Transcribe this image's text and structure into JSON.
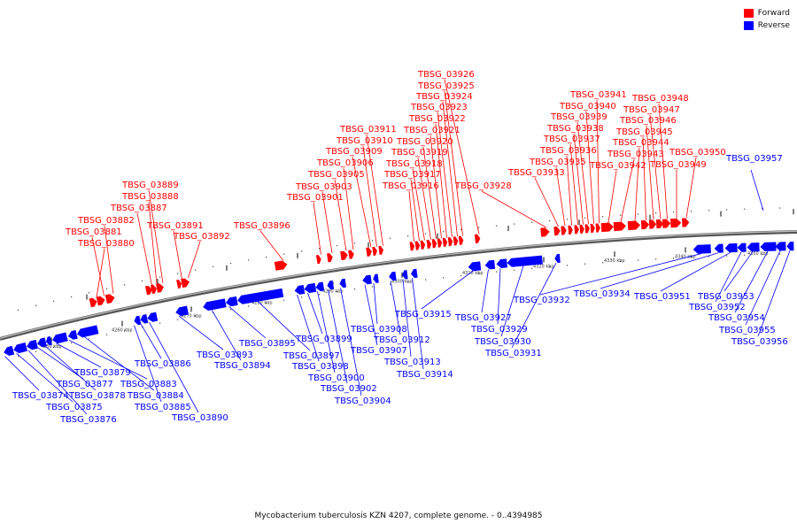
{
  "legend": {
    "forward_label": "Forward",
    "reverse_label": "Reverse",
    "forward_color": "#ff0000",
    "reverse_color": "#0000ff"
  },
  "caption": "Mycobacterium tuberculosis KZN 4207, complete genome. - 0..4394985",
  "ticks": [
    "4250 kbp",
    "4260 kbp",
    "4270 kbp",
    "4280 kbp",
    "4290 kbp",
    "4300 kbp",
    "4310 kbp",
    "4320 kbp",
    "4330 kbp",
    "4340 kbp",
    "4350 kbp"
  ],
  "forward_genes": [
    "TBSG_03880",
    "TBSG_03881",
    "TBSG_03882",
    "TBSG_03887",
    "TBSG_03888",
    "TBSG_03889",
    "TBSG_03891",
    "TBSG_03892",
    "TBSG_03896",
    "TBSG_03901",
    "TBSG_03903",
    "TBSG_03905",
    "TBSG_03906",
    "TBSG_03909",
    "TBSG_03910",
    "TBSG_03911",
    "TBSG_03916",
    "TBSG_03917",
    "TBSG_03918",
    "TBSG_03919",
    "TBSG_03920",
    "TBSG_03921",
    "TBSG_03922",
    "TBSG_03923",
    "TBSG_03924",
    "TBSG_03925",
    "TBSG_03926",
    "TBSG_03928",
    "TBSG_03933",
    "TBSG_03935",
    "TBSG_03936",
    "TBSG_03937",
    "TBSG_03938",
    "TBSG_03939",
    "TBSG_03940",
    "TBSG_03941",
    "TBSG_03942",
    "TBSG_03943",
    "TBSG_03944",
    "TBSG_03945",
    "TBSG_03946",
    "TBSG_03947",
    "TBSG_03948",
    "TBSG_03949",
    "TBSG_03950"
  ],
  "reverse_genes": [
    "TBSG_03874",
    "TBSG_03875",
    "TBSG_03876",
    "TBSG_03877",
    "TBSG_03878",
    "TBSG_03879",
    "TBSG_03883",
    "TBSG_03884",
    "TBSG_03885",
    "TBSG_03886",
    "TBSG_03890",
    "TBSG_03893",
    "TBSG_03894",
    "TBSG_03895",
    "TBSG_03897",
    "TBSG_03898",
    "TBSG_03899",
    "TBSG_03900",
    "TBSG_03902",
    "TBSG_03904",
    "TBSG_03907",
    "TBSG_03908",
    "TBSG_03912",
    "TBSG_03913",
    "TBSG_03914",
    "TBSG_03915",
    "TBSG_03927",
    "TBSG_03929",
    "TBSG_03930",
    "TBSG_03931",
    "TBSG_03932",
    "TBSG_03934",
    "TBSG_03951",
    "TBSG_03952",
    "TBSG_03953",
    "TBSG_03954",
    "TBSG_03955",
    "TBSG_03956",
    "TBSG_03957"
  ]
}
